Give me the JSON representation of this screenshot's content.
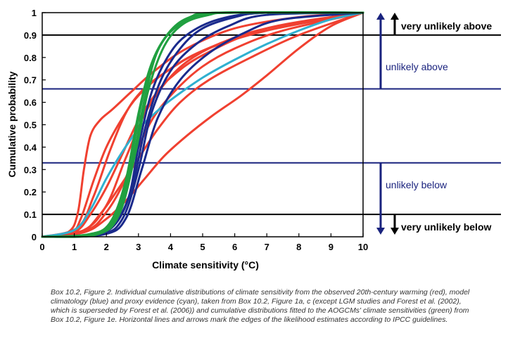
{
  "chart_data": {
    "type": "line",
    "xlabel": "Climate sensitivity (°C)",
    "ylabel": "Cumulative probability",
    "xlim": [
      0,
      10
    ],
    "ylim": [
      0,
      1
    ],
    "x_ticks": [
      "0",
      "1",
      "2",
      "3",
      "4",
      "5",
      "6",
      "7",
      "8",
      "9",
      "10"
    ],
    "y_ticks": [
      "0",
      "0.1",
      "0.2",
      "0.3",
      "0.4",
      "0.5",
      "0.6",
      "0.7",
      "0.8",
      "0.9",
      "1"
    ],
    "grid": false,
    "colors": {
      "observed": "#f04030",
      "model": "#1a2a8c",
      "proxy": "#30b0d0",
      "aogcm": "#20a040",
      "guide_black": "#000000",
      "guide_blue": "#1a237e"
    },
    "series": [
      {
        "group": "observed",
        "points": [
          [
            0,
            0
          ],
          [
            0.8,
            0.02
          ],
          [
            1.1,
            0.1
          ],
          [
            1.3,
            0.3
          ],
          [
            1.5,
            0.45
          ],
          [
            1.8,
            0.52
          ],
          [
            2.2,
            0.57
          ],
          [
            2.8,
            0.65
          ],
          [
            3.5,
            0.74
          ],
          [
            4.5,
            0.84
          ],
          [
            6,
            0.93
          ],
          [
            8,
            0.98
          ],
          [
            10,
            1
          ]
        ]
      },
      {
        "group": "observed",
        "points": [
          [
            0,
            0
          ],
          [
            0.9,
            0.02
          ],
          [
            1.2,
            0.08
          ],
          [
            1.6,
            0.25
          ],
          [
            2.0,
            0.4
          ],
          [
            2.5,
            0.53
          ],
          [
            3.0,
            0.63
          ],
          [
            3.8,
            0.73
          ],
          [
            5,
            0.83
          ],
          [
            7,
            0.92
          ],
          [
            10,
            1
          ]
        ]
      },
      {
        "group": "observed",
        "points": [
          [
            0,
            0
          ],
          [
            1.0,
            0.02
          ],
          [
            1.5,
            0.1
          ],
          [
            2.0,
            0.22
          ],
          [
            2.5,
            0.37
          ],
          [
            3.0,
            0.52
          ],
          [
            3.5,
            0.63
          ],
          [
            4.0,
            0.71
          ],
          [
            5,
            0.81
          ],
          [
            7,
            0.93
          ],
          [
            10,
            1
          ]
        ]
      },
      {
        "group": "observed",
        "points": [
          [
            0,
            0
          ],
          [
            1.2,
            0.02
          ],
          [
            1.8,
            0.1
          ],
          [
            2.4,
            0.22
          ],
          [
            3.0,
            0.35
          ],
          [
            3.6,
            0.48
          ],
          [
            4.3,
            0.6
          ],
          [
            5.2,
            0.7
          ],
          [
            6.5,
            0.8
          ],
          [
            8,
            0.9
          ],
          [
            10,
            1
          ]
        ]
      },
      {
        "group": "observed",
        "points": [
          [
            0,
            0
          ],
          [
            1.3,
            0.02
          ],
          [
            2.0,
            0.08
          ],
          [
            2.6,
            0.16
          ],
          [
            3.2,
            0.26
          ],
          [
            3.8,
            0.36
          ],
          [
            4.5,
            0.45
          ],
          [
            5.3,
            0.54
          ],
          [
            6.2,
            0.63
          ],
          [
            7,
            0.72
          ],
          [
            8,
            0.84
          ],
          [
            9,
            0.94
          ],
          [
            10,
            1
          ]
        ]
      },
      {
        "group": "observed",
        "points": [
          [
            0,
            0
          ],
          [
            1.3,
            0.03
          ],
          [
            2.0,
            0.14
          ],
          [
            2.6,
            0.35
          ],
          [
            3.2,
            0.55
          ],
          [
            3.8,
            0.68
          ],
          [
            4.5,
            0.78
          ],
          [
            5.5,
            0.86
          ],
          [
            7,
            0.93
          ],
          [
            10,
            1
          ]
        ]
      },
      {
        "group": "observed",
        "points": [
          [
            0,
            0
          ],
          [
            1.1,
            0.04
          ],
          [
            1.6,
            0.18
          ],
          [
            2.1,
            0.38
          ],
          [
            2.6,
            0.55
          ],
          [
            3.1,
            0.65
          ],
          [
            3.8,
            0.73
          ],
          [
            5,
            0.83
          ],
          [
            7,
            0.93
          ],
          [
            10,
            1
          ]
        ]
      },
      {
        "group": "observed",
        "points": [
          [
            0,
            0
          ],
          [
            1.4,
            0.03
          ],
          [
            2.0,
            0.11
          ],
          [
            2.5,
            0.23
          ],
          [
            3.0,
            0.4
          ],
          [
            3.5,
            0.54
          ],
          [
            4.2,
            0.66
          ],
          [
            5,
            0.76
          ],
          [
            6,
            0.84
          ],
          [
            7.5,
            0.92
          ],
          [
            10,
            1
          ]
        ]
      },
      {
        "group": "model",
        "points": [
          [
            0,
            0
          ],
          [
            1.6,
            0.01
          ],
          [
            2.3,
            0.06
          ],
          [
            2.8,
            0.22
          ],
          [
            3.2,
            0.48
          ],
          [
            3.7,
            0.7
          ],
          [
            4.3,
            0.84
          ],
          [
            5,
            0.93
          ],
          [
            6,
            0.98
          ],
          [
            7,
            1
          ],
          [
            10,
            1
          ]
        ]
      },
      {
        "group": "model",
        "points": [
          [
            0,
            0
          ],
          [
            1.8,
            0.01
          ],
          [
            2.5,
            0.08
          ],
          [
            3.0,
            0.3
          ],
          [
            3.4,
            0.55
          ],
          [
            4.0,
            0.74
          ],
          [
            4.8,
            0.86
          ],
          [
            5.8,
            0.94
          ],
          [
            7,
            0.99
          ],
          [
            10,
            1
          ]
        ]
      },
      {
        "group": "model",
        "points": [
          [
            0,
            0
          ],
          [
            1.9,
            0.01
          ],
          [
            2.6,
            0.08
          ],
          [
            3.1,
            0.3
          ],
          [
            3.6,
            0.53
          ],
          [
            4.3,
            0.7
          ],
          [
            5.2,
            0.82
          ],
          [
            6.3,
            0.91
          ],
          [
            7.5,
            0.97
          ],
          [
            10,
            1
          ]
        ]
      },
      {
        "group": "model",
        "points": [
          [
            0,
            0
          ],
          [
            1.5,
            0.01
          ],
          [
            2.2,
            0.05
          ],
          [
            2.7,
            0.18
          ],
          [
            3.0,
            0.4
          ],
          [
            3.4,
            0.64
          ],
          [
            3.9,
            0.8
          ],
          [
            4.5,
            0.9
          ],
          [
            5.5,
            0.97
          ],
          [
            7,
            1
          ],
          [
            10,
            1
          ]
        ]
      },
      {
        "group": "proxy",
        "points": [
          [
            0,
            0
          ],
          [
            1.0,
            0.03
          ],
          [
            1.5,
            0.12
          ],
          [
            2.0,
            0.26
          ],
          [
            2.5,
            0.38
          ],
          [
            3.0,
            0.48
          ],
          [
            3.5,
            0.55
          ],
          [
            4.0,
            0.61
          ],
          [
            5,
            0.71
          ],
          [
            6,
            0.79
          ],
          [
            7,
            0.86
          ],
          [
            8,
            0.92
          ],
          [
            9,
            0.97
          ],
          [
            10,
            1
          ]
        ]
      },
      {
        "group": "aogcm",
        "points": [
          [
            0,
            0
          ],
          [
            1.5,
            0.01
          ],
          [
            2.2,
            0.07
          ],
          [
            2.7,
            0.3
          ],
          [
            3.1,
            0.6
          ],
          [
            3.5,
            0.8
          ],
          [
            4,
            0.92
          ],
          [
            4.6,
            0.98
          ],
          [
            5.5,
            1
          ],
          [
            10,
            1
          ]
        ]
      },
      {
        "group": "aogcm",
        "points": [
          [
            0,
            0
          ],
          [
            1.7,
            0.01
          ],
          [
            2.4,
            0.1
          ],
          [
            2.9,
            0.37
          ],
          [
            3.3,
            0.65
          ],
          [
            3.8,
            0.85
          ],
          [
            4.4,
            0.95
          ],
          [
            5.2,
            0.99
          ],
          [
            6,
            1
          ],
          [
            10,
            1
          ]
        ]
      },
      {
        "group": "aogcm",
        "points": [
          [
            0,
            0
          ],
          [
            1.6,
            0.01
          ],
          [
            2.3,
            0.08
          ],
          [
            2.8,
            0.33
          ],
          [
            3.2,
            0.62
          ],
          [
            3.6,
            0.83
          ],
          [
            4.2,
            0.94
          ],
          [
            5,
            0.99
          ],
          [
            6,
            1
          ],
          [
            10,
            1
          ]
        ]
      },
      {
        "group": "aogcm",
        "points": [
          [
            0,
            0
          ],
          [
            1.4,
            0.01
          ],
          [
            2.1,
            0.06
          ],
          [
            2.6,
            0.25
          ],
          [
            3.0,
            0.55
          ],
          [
            3.4,
            0.77
          ],
          [
            3.9,
            0.9
          ],
          [
            4.6,
            0.97
          ],
          [
            5.5,
            1
          ],
          [
            10,
            1
          ]
        ]
      }
    ],
    "guides": [
      {
        "y": 0.9,
        "color": "black"
      },
      {
        "y": 0.66,
        "color": "blue"
      },
      {
        "y": 0.33,
        "color": "blue"
      },
      {
        "y": 0.1,
        "color": "black"
      }
    ],
    "annotations": {
      "very_unlikely_above": "very unlikely above",
      "unlikely_above": "unlikely above",
      "unlikely_below": "unlikely below",
      "very_unlikely_below": "very unlikely below"
    }
  },
  "caption": "Box 10.2, Figure 2. Individual cumulative distributions of climate sensitivity from the observed 20th-century warming (red), model climatology (blue) and proxy evidence (cyan), taken from Box 10.2, Figure 1a, c (except LGM studies and Forest et al. (2002), which is superseded by Forest et al. (2006)) and cumulative distributions fitted to the AOGCMs' climate sensitivities (green) from Box 10.2, Figure 1e. Horizontal lines and arrows mark the edges of the likelihood estimates according to IPCC guidelines."
}
